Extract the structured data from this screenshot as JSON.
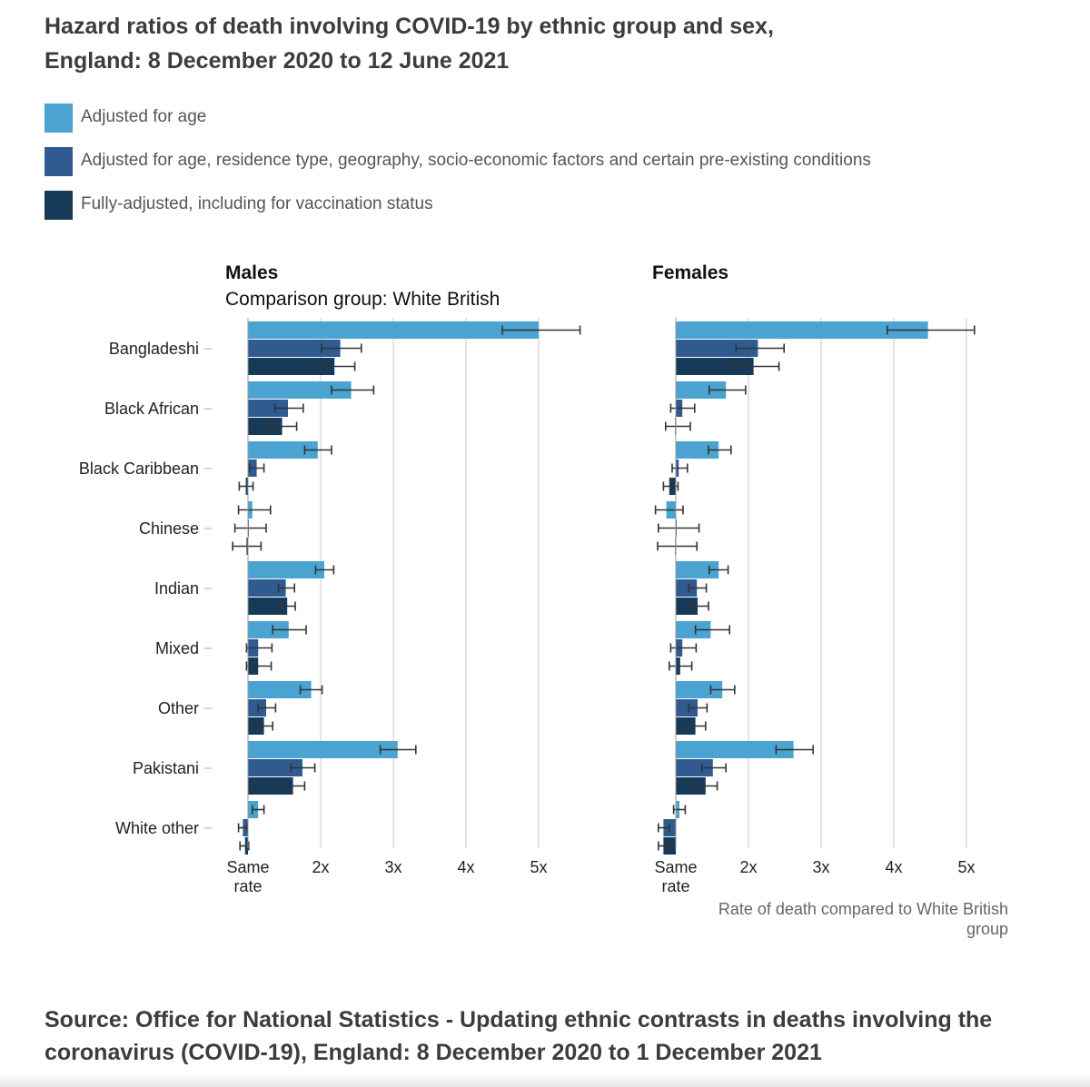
{
  "title_line1": "Hazard ratios of death involving COVID-19 by ethnic group and sex,",
  "title_line2": "England: 8 December 2020 to 12 June 2021",
  "legend": [
    {
      "label": "Adjusted for age",
      "color": "#4aa3d1"
    },
    {
      "label": "Adjusted for age, residence type, geography, socio-economic factors and certain pre-existing conditions",
      "color": "#2f5b91"
    },
    {
      "label": "Fully-adjusted, including for vaccination status",
      "color": "#163a58"
    }
  ],
  "source_line1": "Source: Office for National Statistics - Updating ethnic contrasts in deaths involving the",
  "source_line2": "coronavirus (COVID-19), England: 8 December 2020 to 1 December 2021",
  "chart_data": {
    "type": "bar",
    "orientation": "horizontal",
    "subtitle": "Comparison group: White British",
    "xlabel": "Rate of death compared to White British group",
    "xlim": [
      1,
      5.1
    ],
    "x_ticks": [
      {
        "value": 1,
        "label": "Same rate"
      },
      {
        "value": 2,
        "label": "2x"
      },
      {
        "value": 3,
        "label": "3x"
      },
      {
        "value": 4,
        "label": "4x"
      },
      {
        "value": 5,
        "label": "5x"
      }
    ],
    "grid": true,
    "categories": [
      "Bangladeshi",
      "Black African",
      "Black Caribbean",
      "Chinese",
      "Indian",
      "Mixed",
      "Other",
      "Pakistani",
      "White other"
    ],
    "series_names": [
      "Adjusted for age",
      "Adjusted for age, residence type, geography, socio-economic factors and certain pre-existing conditions",
      "Fully-adjusted, including for vaccination status"
    ],
    "panels": [
      {
        "title": "Males",
        "series": [
          {
            "name": "Adjusted for age",
            "values": [
              5.0,
              2.42,
              1.96,
              1.06,
              2.05,
              1.56,
              1.87,
              3.06,
              1.14
            ],
            "ci_low": [
              4.5,
              2.15,
              1.78,
              0.87,
              1.93,
              1.34,
              1.72,
              2.82,
              1.06
            ],
            "ci_high": [
              5.57,
              2.73,
              2.15,
              1.31,
              2.18,
              1.8,
              2.02,
              3.31,
              1.22
            ]
          },
          {
            "name": "Adjusted for age, residence type, geography, socio-economic factors and certain pre-existing conditions",
            "values": [
              2.27,
              1.55,
              1.12,
              1.01,
              1.52,
              1.14,
              1.25,
              1.75,
              0.93
            ],
            "ci_low": [
              2.01,
              1.37,
              1.02,
              0.82,
              1.42,
              0.98,
              1.14,
              1.59,
              0.87
            ],
            "ci_high": [
              2.56,
              1.76,
              1.22,
              1.25,
              1.64,
              1.33,
              1.38,
              1.92,
              0.99
            ]
          },
          {
            "name": "Fully-adjusted, including for vaccination status",
            "values": [
              2.19,
              1.47,
              0.97,
              0.98,
              1.54,
              1.14,
              1.22,
              1.62,
              0.96
            ],
            "ci_low": [
              1.95,
              1.29,
              0.88,
              0.79,
              1.43,
              0.98,
              1.11,
              1.47,
              0.89
            ],
            "ci_high": [
              2.47,
              1.67,
              1.07,
              1.18,
              1.65,
              1.32,
              1.34,
              1.78,
              1.01
            ]
          }
        ]
      },
      {
        "title": "Females",
        "series": [
          {
            "name": "Adjusted for age",
            "values": [
              4.47,
              1.69,
              1.59,
              0.87,
              1.59,
              1.48,
              1.64,
              2.62,
              1.05
            ],
            "ci_low": [
              3.91,
              1.46,
              1.45,
              0.72,
              1.46,
              1.27,
              1.48,
              2.38,
              0.97
            ],
            "ci_high": [
              5.11,
              1.96,
              1.76,
              1.1,
              1.72,
              1.74,
              1.81,
              2.89,
              1.13
            ]
          },
          {
            "name": "Adjusted for age, residence type, geography, socio-economic factors and certain pre-existing conditions",
            "values": [
              2.13,
              1.09,
              1.04,
              1.0,
              1.29,
              1.09,
              1.3,
              1.51,
              0.83
            ],
            "ci_low": [
              1.83,
              0.93,
              0.95,
              0.76,
              1.18,
              0.93,
              1.18,
              1.36,
              0.76
            ],
            "ci_high": [
              2.49,
              1.26,
              1.16,
              1.32,
              1.42,
              1.28,
              1.43,
              1.69,
              0.91
            ]
          },
          {
            "name": "Fully-adjusted, including for vaccination status",
            "values": [
              2.07,
              0.99,
              0.91,
              0.99,
              1.3,
              1.06,
              1.27,
              1.41,
              0.83
            ],
            "ci_low": [
              1.78,
              0.86,
              0.83,
              0.75,
              1.19,
              0.91,
              1.16,
              1.26,
              0.76
            ],
            "ci_high": [
              2.42,
              1.2,
              1.03,
              1.29,
              1.45,
              1.22,
              1.41,
              1.57,
              0.91
            ]
          }
        ]
      }
    ]
  }
}
